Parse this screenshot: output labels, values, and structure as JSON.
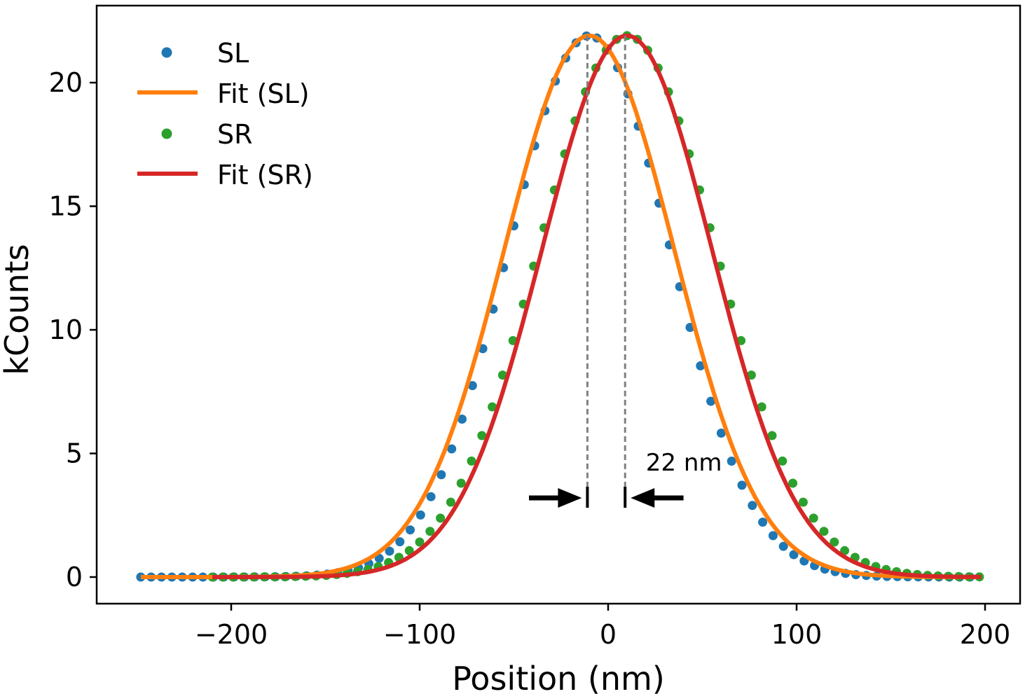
{
  "chart_data": {
    "type": "scatter",
    "xlabel": "Position (nm)",
    "ylabel": "kCounts",
    "xlim": [
      -250,
      200
    ],
    "ylim": [
      -1,
      23
    ],
    "xticks": [
      -200,
      -100,
      0,
      100,
      200
    ],
    "xtick_labels": [
      "−200",
      "−100",
      "0",
      "100",
      "200"
    ],
    "yticks": [
      0,
      5,
      10,
      15,
      20
    ],
    "ytick_labels": [
      "0",
      "5",
      "10",
      "15",
      "20"
    ],
    "legend_position": "top-left",
    "series": [
      {
        "name": "SL",
        "kind": "points",
        "color": "#1f77b4",
        "x_start": -248,
        "x_end": 196,
        "x_step": 5.5,
        "model": {
          "amplitude": 21.9,
          "center": -10,
          "sigma": 43,
          "baseline": 0
        }
      },
      {
        "name": "Fit (SL)",
        "kind": "line",
        "color": "#ff7f0e",
        "x_start": -248,
        "x_end": 196,
        "model": {
          "amplitude": 21.9,
          "center": -10,
          "sigma": 45,
          "baseline": 0
        }
      },
      {
        "name": "SR",
        "kind": "points",
        "color": "#2ca02c",
        "x_start": -210,
        "x_end": 198,
        "x_step": 5.5,
        "model": {
          "amplitude": 21.9,
          "center": 10,
          "sigma": 47,
          "baseline": 0
        }
      },
      {
        "name": "Fit (SR)",
        "kind": "line",
        "color": "#d62728",
        "x_start": -210,
        "x_end": 198,
        "model": {
          "amplitude": 21.9,
          "center": 10,
          "sigma": 45,
          "baseline": 0
        }
      }
    ],
    "annotations": {
      "peak_lines_x": [
        -11,
        9
      ],
      "peak_lines_y_top": 21.9,
      "arrow_y": 3.2,
      "arrow_left_from_x": -42,
      "arrow_right_from_x": 40,
      "separation_label": "22 nm",
      "separation_label_x": 20,
      "separation_label_y": 4.3
    }
  }
}
